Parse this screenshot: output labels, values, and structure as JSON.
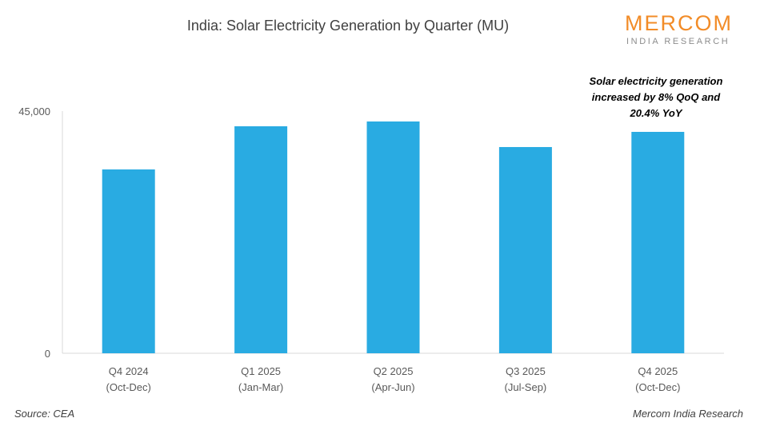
{
  "header": {
    "title": "India: Solar Electricity Generation by Quarter (MU)"
  },
  "logo": {
    "main": "MERCOM",
    "sub": "INDIA RESEARCH"
  },
  "annotation": {
    "lines": [
      "Solar electricity generation",
      "increased  by 8% QoQ and",
      "20.4% YoY"
    ]
  },
  "footer": {
    "source": "Source: CEA",
    "credit": "Mercom India Research"
  },
  "colors": {
    "bar": "#29ABE2",
    "logo": "#F28C28",
    "axis": "#D9D9D9"
  },
  "chart_data": {
    "type": "bar",
    "title": "India: Solar Electricity Generation by Quarter (MU)",
    "xlabel": "",
    "ylabel": "",
    "ylim": [
      0,
      45000
    ],
    "yticks": [
      0,
      45000
    ],
    "ytick_labels": [
      "0",
      "45,000"
    ],
    "grid": false,
    "legend": "none",
    "categories": [
      [
        "Q4 2024",
        "(Oct-Dec)"
      ],
      [
        "Q1 2025",
        "(Jan-Mar)"
      ],
      [
        "Q2 2025",
        "(Apr-Jun)"
      ],
      [
        "Q3 2025",
        "(Jul-Sep)"
      ],
      [
        "Q4 2025",
        "(Oct-Dec)"
      ]
    ],
    "series": [
      {
        "name": "Solar Electricity Generation (MU)",
        "values": [
          34160,
          42180,
          43070,
          38320,
          41140
        ]
      }
    ],
    "annotations": [
      "Solar electricity generation increased  by 8% QoQ and 20.4% YoY"
    ]
  }
}
